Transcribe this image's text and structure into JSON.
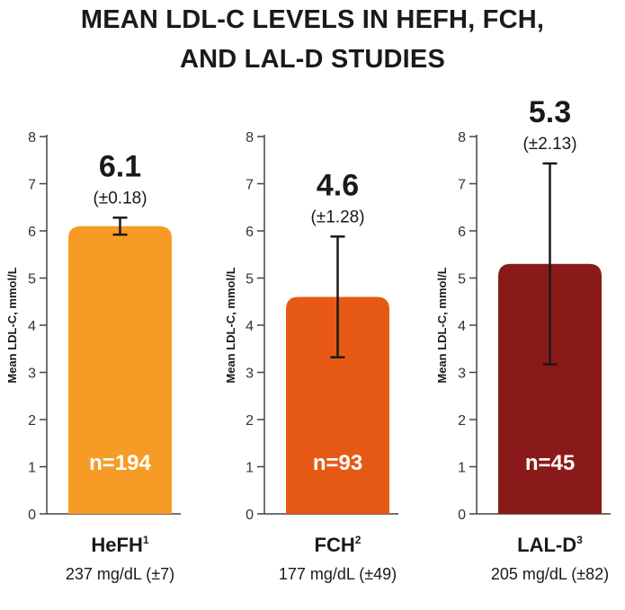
{
  "title_line1": "MEAN LDL-C LEVELS IN HEFH, FCH,",
  "title_line2": "AND LAL-D STUDIES",
  "chart_data": {
    "type": "bar",
    "ylabel": "Mean LDL-C, mmol/L",
    "ylim": [
      0,
      8
    ],
    "yticks": [
      "0",
      "1",
      "2",
      "3",
      "4",
      "5",
      "6",
      "7",
      "8"
    ],
    "panels": [
      {
        "category": "HeFH",
        "superscript": "1",
        "value": 6.1,
        "value_label": "6.1",
        "error": 0.18,
        "error_label": "(±0.18)",
        "n_label": "n=194",
        "mgdl_label": "237 mg/dL (±7)",
        "color": "#F59B26"
      },
      {
        "category": "FCH",
        "superscript": "2",
        "value": 4.6,
        "value_label": "4.6",
        "error": 1.28,
        "error_label": "(±1.28)",
        "n_label": "n=93",
        "mgdl_label": "177 mg/dL (±49)",
        "color": "#E65A16"
      },
      {
        "category": "LAL-D",
        "superscript": "3",
        "value": 5.3,
        "value_label": "5.3",
        "error": 2.13,
        "error_label": "(±2.13)",
        "n_label": "n=45",
        "mgdl_label": "205 mg/dL (±82)",
        "color": "#8A1A1A"
      }
    ]
  }
}
